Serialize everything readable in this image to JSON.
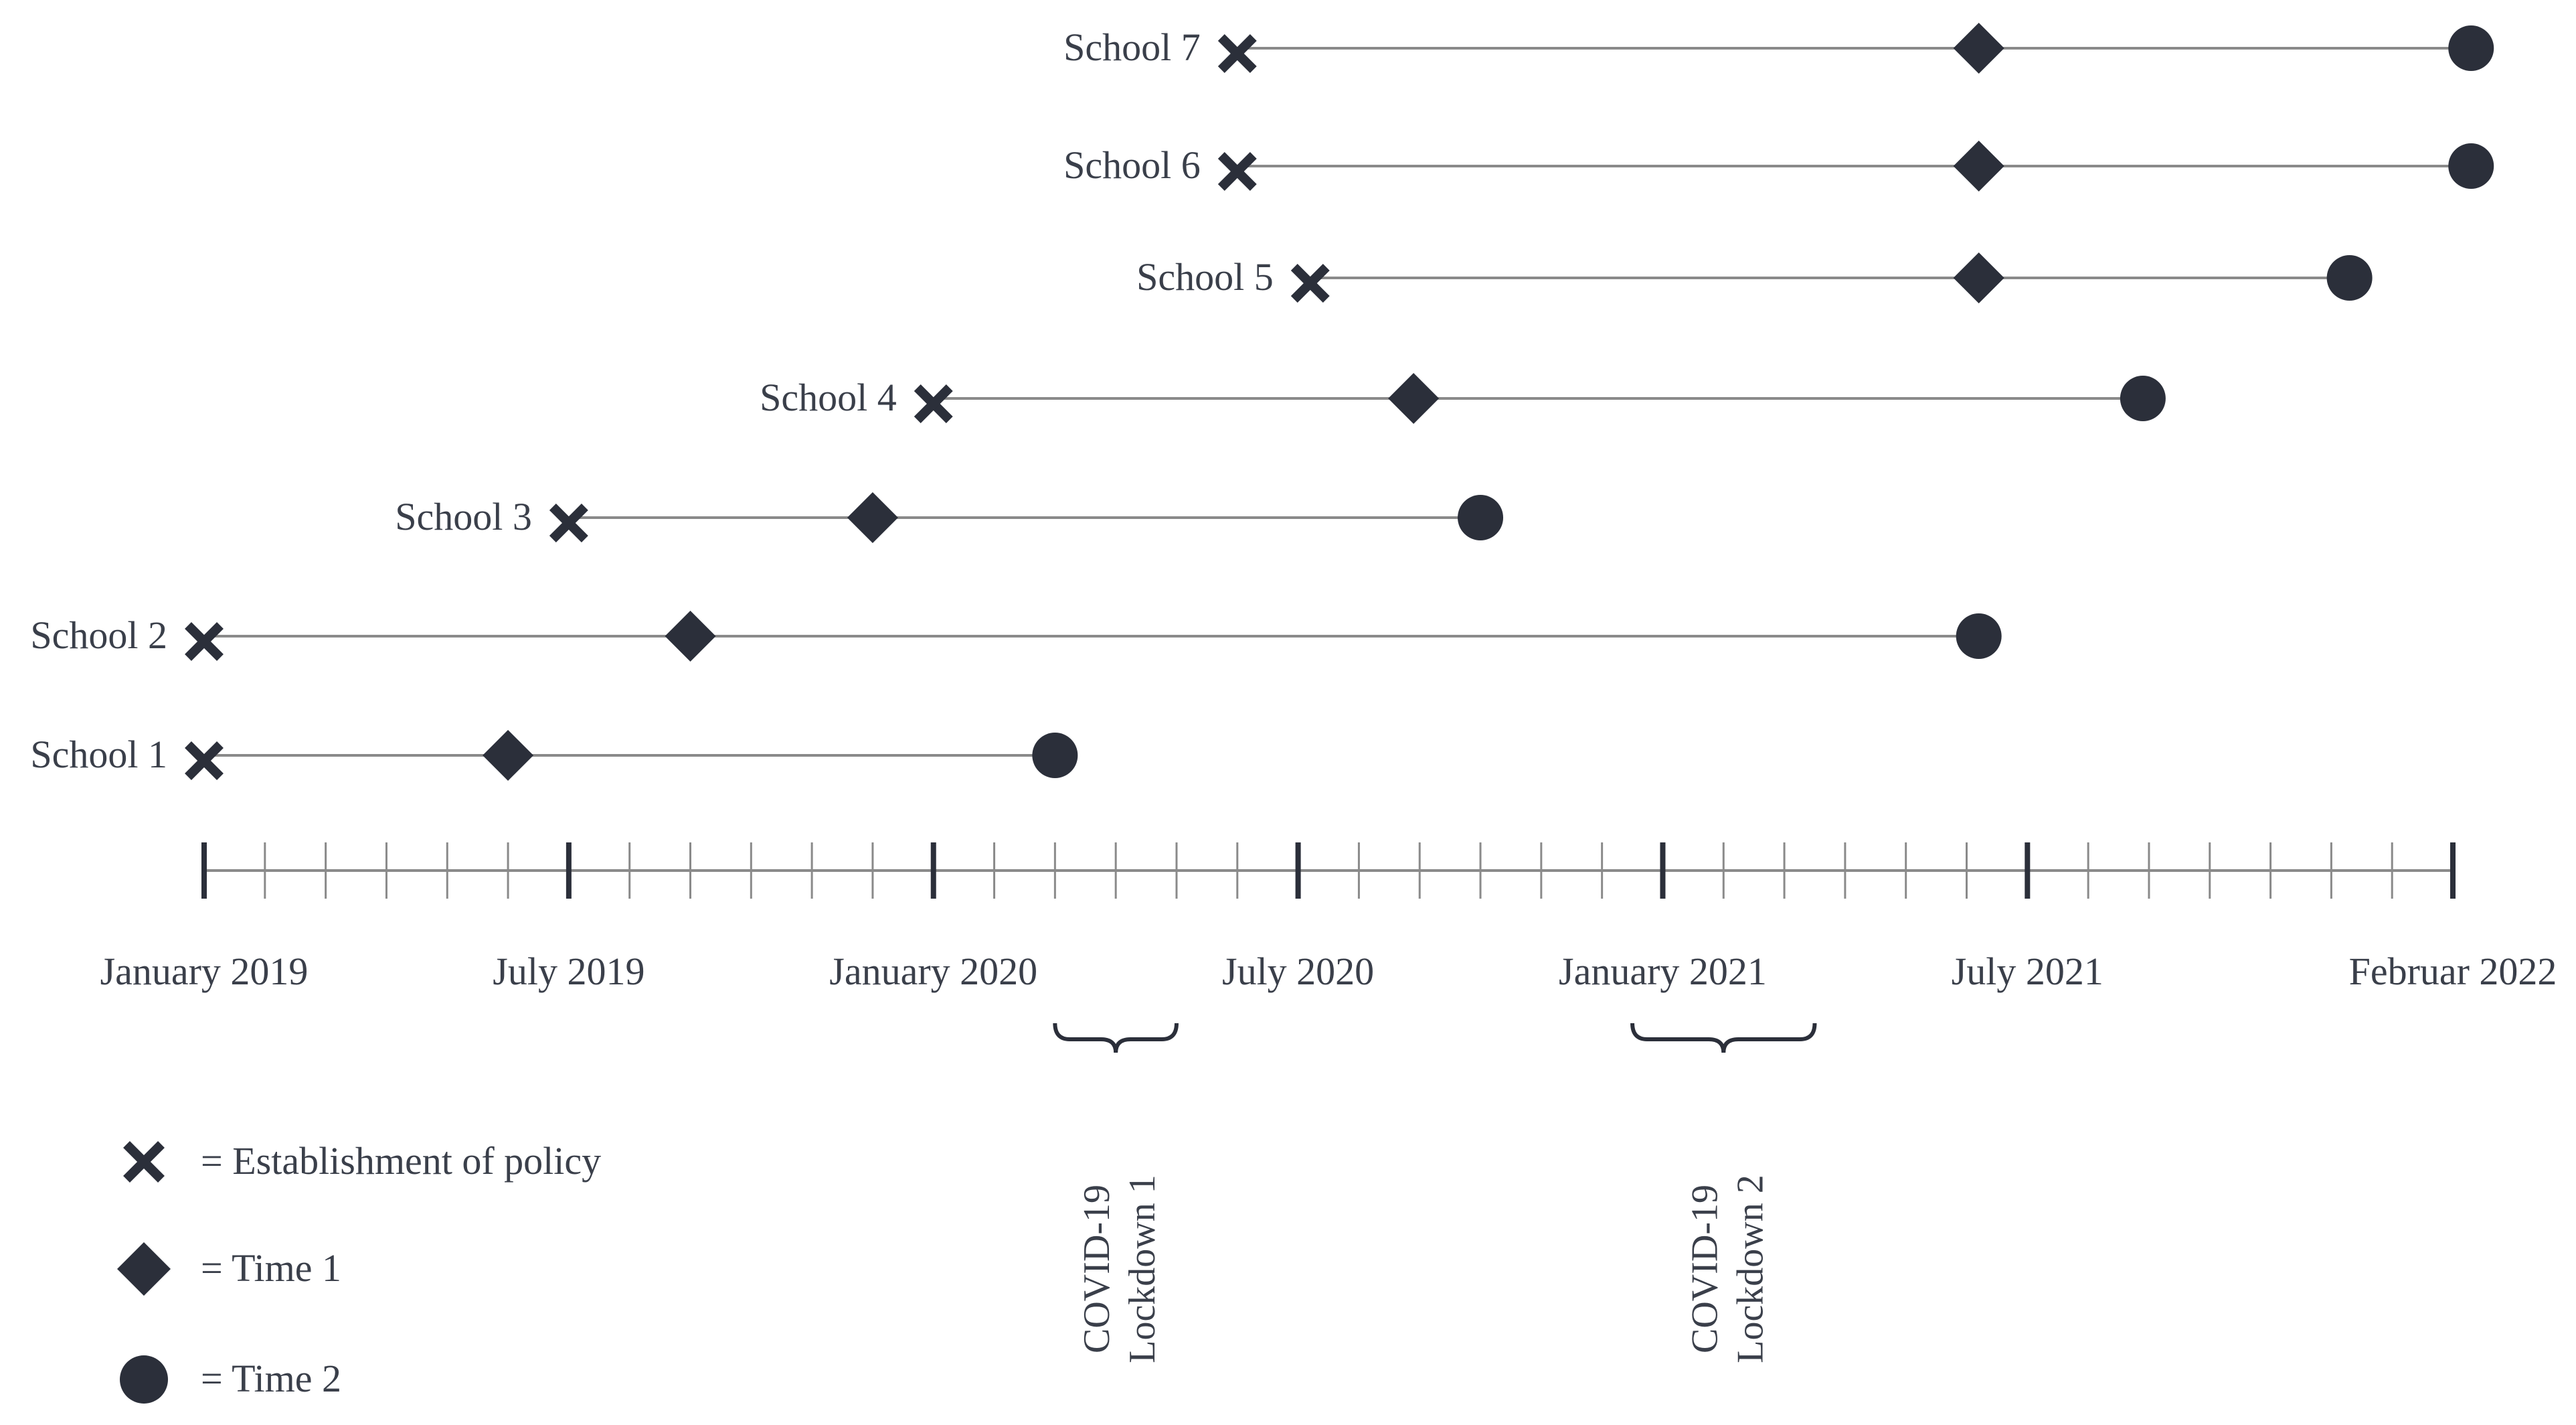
{
  "colors": {
    "ink": "#2b2f3a",
    "line": "#8a8a8a",
    "text": "#3a3f4a"
  },
  "timeline": {
    "months_span": 37,
    "axis_labels": [
      {
        "month": 0,
        "text": "January 2019"
      },
      {
        "month": 6,
        "text": "July 2019"
      },
      {
        "month": 12,
        "text": "January 2020"
      },
      {
        "month": 18,
        "text": "July 2020"
      },
      {
        "month": 24,
        "text": "January 2021"
      },
      {
        "month": 30,
        "text": "July 2021"
      },
      {
        "month": 37,
        "text": "Februar 2022"
      }
    ],
    "major_ticks": [
      0,
      6,
      12,
      18,
      24,
      30,
      37
    ]
  },
  "schools": [
    {
      "label": "School 7",
      "policy": 17.0,
      "time1": 29.2,
      "time2": 37.3
    },
    {
      "label": "School 6",
      "policy": 17.0,
      "time1": 29.2,
      "time2": 37.3
    },
    {
      "label": "School 5",
      "policy": 18.2,
      "time1": 29.2,
      "time2": 35.3
    },
    {
      "label": "School 4",
      "policy": 12.0,
      "time1": 19.9,
      "time2": 31.9
    },
    {
      "label": "School 3",
      "policy": 6.0,
      "time1": 11.0,
      "time2": 21.0
    },
    {
      "label": "School 2",
      "policy": 0.0,
      "time1": 8.0,
      "time2": 29.2
    },
    {
      "label": "School 1",
      "policy": 0.0,
      "time1": 5.0,
      "time2": 14.0
    }
  ],
  "lockdowns": [
    {
      "line1": "COVID-19",
      "line2": "Lockdown 1",
      "start": 14.0,
      "end": 16.0
    },
    {
      "line1": "COVID-19",
      "line2": "Lockdown 2",
      "start": 23.5,
      "end": 26.5
    }
  ],
  "legend": [
    {
      "marker": "x-mark",
      "text": "= Establishment of policy"
    },
    {
      "marker": "diamond",
      "text": "= Time 1"
    },
    {
      "marker": "circle",
      "text": "= Time 2"
    }
  ]
}
